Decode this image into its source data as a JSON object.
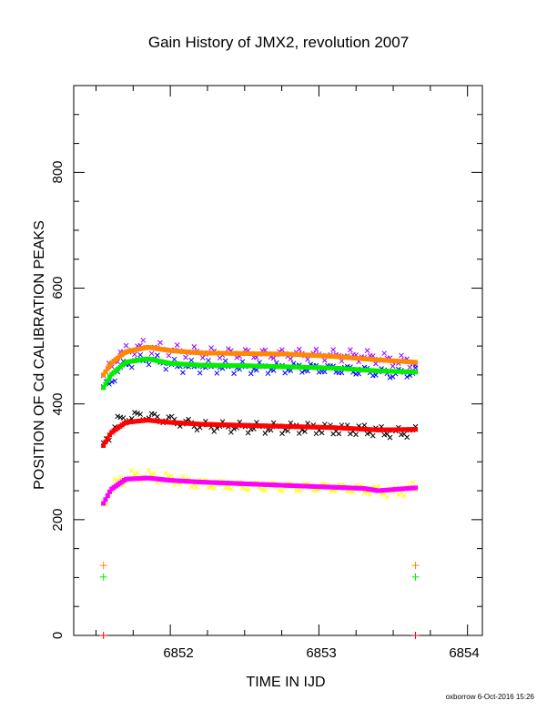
{
  "chart_data": {
    "type": "scatter",
    "title": "Gain History of JMX2, revolution 2007",
    "xlabel": "TIME IN IJD",
    "ylabel": "POSITION OF Cd CALIBRATION PEAKS",
    "xlim": [
      6851.35,
      6854.1
    ],
    "ylim": [
      0,
      950
    ],
    "x_ticks": [
      "6852",
      "6853",
      "6854"
    ],
    "y_ticks": [
      "0",
      "200",
      "400",
      "600",
      "800"
    ],
    "grid": false,
    "series": [
      {
        "marker": "x",
        "color": "#9900ff",
        "points": [
          [
            6851.55,
            445
          ],
          [
            6851.65,
            485
          ],
          [
            6851.8,
            500
          ],
          [
            6851.95,
            495
          ],
          [
            6852.1,
            490
          ],
          [
            6852.3,
            488
          ],
          [
            6852.5,
            487
          ],
          [
            6852.7,
            486
          ],
          [
            6852.9,
            486
          ],
          [
            6853.1,
            484
          ],
          [
            6853.3,
            483
          ],
          [
            6853.5,
            475
          ],
          [
            6853.65,
            472
          ]
        ]
      },
      {
        "marker": "curve",
        "color": "#ff8800",
        "points": [
          [
            6851.55,
            450
          ],
          [
            6851.6,
            470
          ],
          [
            6851.7,
            490
          ],
          [
            6851.85,
            498
          ],
          [
            6852.0,
            492
          ],
          [
            6852.2,
            488
          ],
          [
            6852.5,
            487
          ],
          [
            6852.8,
            486
          ],
          [
            6853.1,
            482
          ],
          [
            6853.4,
            476
          ],
          [
            6853.65,
            472
          ]
        ]
      },
      {
        "marker": "x",
        "color": "#0000ff",
        "points": [
          [
            6851.55,
            425
          ],
          [
            6851.7,
            470
          ],
          [
            6851.85,
            478
          ],
          [
            6852.05,
            465
          ],
          [
            6852.3,
            464
          ],
          [
            6852.6,
            462
          ],
          [
            6852.9,
            462
          ],
          [
            6853.1,
            460
          ],
          [
            6853.3,
            457
          ],
          [
            6853.5,
            452
          ],
          [
            6853.65,
            455
          ]
        ]
      },
      {
        "marker": "curve",
        "color": "#00ee00",
        "points": [
          [
            6851.55,
            428
          ],
          [
            6851.6,
            450
          ],
          [
            6851.7,
            472
          ],
          [
            6851.85,
            478
          ],
          [
            6852.0,
            470
          ],
          [
            6852.2,
            467
          ],
          [
            6852.5,
            466
          ],
          [
            6852.8,
            464
          ],
          [
            6853.1,
            462
          ],
          [
            6853.4,
            457
          ],
          [
            6853.65,
            455
          ]
        ]
      },
      {
        "marker": "x",
        "color": "#000000",
        "points": [
          [
            6851.55,
            330
          ],
          [
            6851.65,
            372
          ],
          [
            6851.8,
            380
          ],
          [
            6852.0,
            372
          ],
          [
            6852.2,
            362
          ],
          [
            6852.4,
            360
          ],
          [
            6852.7,
            358
          ],
          [
            6852.9,
            358
          ],
          [
            6853.1,
            356
          ],
          [
            6853.3,
            355
          ],
          [
            6853.5,
            350
          ],
          [
            6853.65,
            352
          ]
        ]
      },
      {
        "marker": "curve",
        "color": "#ff0000",
        "points": [
          [
            6851.55,
            328
          ],
          [
            6851.6,
            350
          ],
          [
            6851.7,
            368
          ],
          [
            6851.85,
            372
          ],
          [
            6852.0,
            368
          ],
          [
            6852.2,
            365
          ],
          [
            6852.5,
            363
          ],
          [
            6852.8,
            361
          ],
          [
            6853.1,
            359
          ],
          [
            6853.4,
            355
          ],
          [
            6853.65,
            356
          ]
        ]
      },
      {
        "marker": "x",
        "color": "#ffff00",
        "points": [
          [
            6851.55,
            230
          ],
          [
            6851.65,
            268
          ],
          [
            6851.8,
            278
          ],
          [
            6852.0,
            270
          ],
          [
            6852.2,
            262
          ],
          [
            6852.5,
            258
          ],
          [
            6852.8,
            256
          ],
          [
            6853.0,
            256
          ],
          [
            6853.2,
            254
          ],
          [
            6853.4,
            250
          ],
          [
            6853.5,
            245
          ],
          [
            6853.65,
            256
          ]
        ]
      },
      {
        "marker": "curve",
        "color": "#ff00ff",
        "points": [
          [
            6851.55,
            228
          ],
          [
            6851.6,
            252
          ],
          [
            6851.7,
            270
          ],
          [
            6851.85,
            272
          ],
          [
            6852.0,
            268
          ],
          [
            6852.2,
            265
          ],
          [
            6852.5,
            262
          ],
          [
            6852.8,
            259
          ],
          [
            6853.1,
            256
          ],
          [
            6853.3,
            254
          ],
          [
            6853.4,
            250
          ],
          [
            6853.65,
            255
          ]
        ]
      },
      {
        "marker": "+",
        "color": "#ff8800",
        "points": [
          [
            6851.55,
            121
          ],
          [
            6853.65,
            121
          ]
        ]
      },
      {
        "marker": "+",
        "color": "#00ee00",
        "points": [
          [
            6851.55,
            101
          ],
          [
            6853.65,
            101
          ]
        ]
      },
      {
        "marker": "+",
        "color": "#ff0000",
        "points": [
          [
            6851.55,
            0
          ],
          [
            6853.65,
            0
          ]
        ]
      }
    ]
  },
  "footer": "oxborrow 6-Oct-2016 15:26"
}
